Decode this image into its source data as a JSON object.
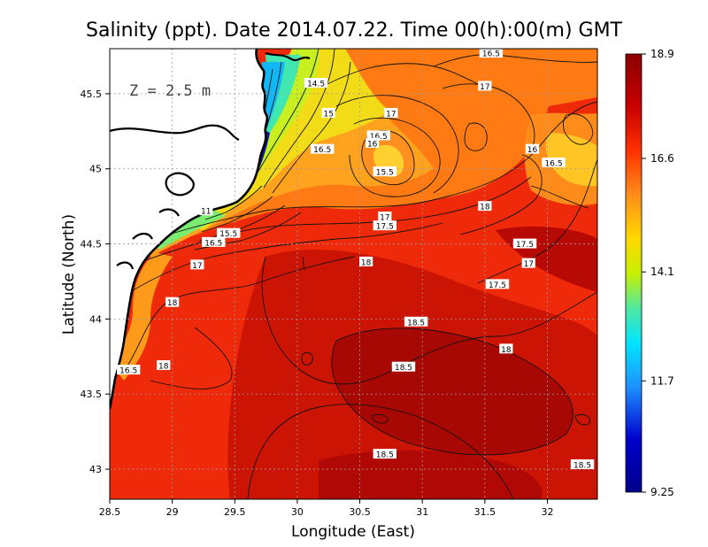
{
  "chart_data": {
    "type": "heatmap",
    "title": "Salinity (ppt). Date 2014.07.22. Time 00(h):00(m) GMT",
    "xlabel": "Longitude (East)",
    "ylabel": "Latitude (North)",
    "depth_label": "Z = 2.5 m",
    "xlim": [
      28.5,
      32.4
    ],
    "ylim": [
      42.8,
      45.8
    ],
    "x_ticks": [
      "28.5",
      "29",
      "29.5",
      "30",
      "30.5",
      "31",
      "31.5",
      "32"
    ],
    "y_ticks": [
      "43",
      "43.5",
      "44",
      "44.5",
      "45",
      "45.5"
    ],
    "grid": true,
    "colorbar": {
      "min": 9.25,
      "max": 18.9,
      "ticks": [
        "18.9",
        "16.6",
        "14.1",
        "11.7",
        "9.25"
      ],
      "colors": [
        "#8b0000",
        "#d81e05",
        "#ff4500",
        "#ff8c1a",
        "#ffd700",
        "#c8f000",
        "#50e8a0",
        "#00e5ff",
        "#1e90ff",
        "#0000cd",
        "#00008b"
      ]
    },
    "contour_labels": [
      {
        "text": "16.5",
        "lon": 31.55,
        "lat": 45.77
      },
      {
        "text": "14.5",
        "lon": 30.15,
        "lat": 45.57
      },
      {
        "text": "17",
        "lon": 31.5,
        "lat": 45.55
      },
      {
        "text": "15",
        "lon": 30.25,
        "lat": 45.37
      },
      {
        "text": "17",
        "lon": 30.75,
        "lat": 45.37
      },
      {
        "text": "16.5",
        "lon": 30.65,
        "lat": 45.22
      },
      {
        "text": "16",
        "lon": 30.6,
        "lat": 45.17
      },
      {
        "text": "16.5",
        "lon": 30.2,
        "lat": 45.13
      },
      {
        "text": "16",
        "lon": 31.88,
        "lat": 45.13
      },
      {
        "text": "16.5",
        "lon": 32.05,
        "lat": 45.04
      },
      {
        "text": "15.5",
        "lon": 30.7,
        "lat": 44.98
      },
      {
        "text": "18",
        "lon": 31.5,
        "lat": 44.75
      },
      {
        "text": "11",
        "lon": 29.27,
        "lat": 44.72
      },
      {
        "text": "17",
        "lon": 30.7,
        "lat": 44.68
      },
      {
        "text": "17.5",
        "lon": 30.7,
        "lat": 44.62
      },
      {
        "text": "15.5",
        "lon": 29.45,
        "lat": 44.57
      },
      {
        "text": "16.5",
        "lon": 29.33,
        "lat": 44.51
      },
      {
        "text": "17.5",
        "lon": 31.82,
        "lat": 44.5
      },
      {
        "text": "18",
        "lon": 30.55,
        "lat": 44.38
      },
      {
        "text": "17",
        "lon": 29.2,
        "lat": 44.36
      },
      {
        "text": "17",
        "lon": 31.85,
        "lat": 44.37
      },
      {
        "text": "17.5",
        "lon": 31.6,
        "lat": 44.23
      },
      {
        "text": "18",
        "lon": 29.0,
        "lat": 44.11
      },
      {
        "text": "18.5",
        "lon": 30.95,
        "lat": 43.98
      },
      {
        "text": "18",
        "lon": 31.67,
        "lat": 43.8
      },
      {
        "text": "18",
        "lon": 28.93,
        "lat": 43.69
      },
      {
        "text": "16.5",
        "lon": 28.65,
        "lat": 43.66
      },
      {
        "text": "18.5",
        "lon": 30.85,
        "lat": 43.68
      },
      {
        "text": "18.5",
        "lon": 30.7,
        "lat": 43.1
      },
      {
        "text": "18.5",
        "lon": 32.28,
        "lat": 43.03
      }
    ]
  }
}
